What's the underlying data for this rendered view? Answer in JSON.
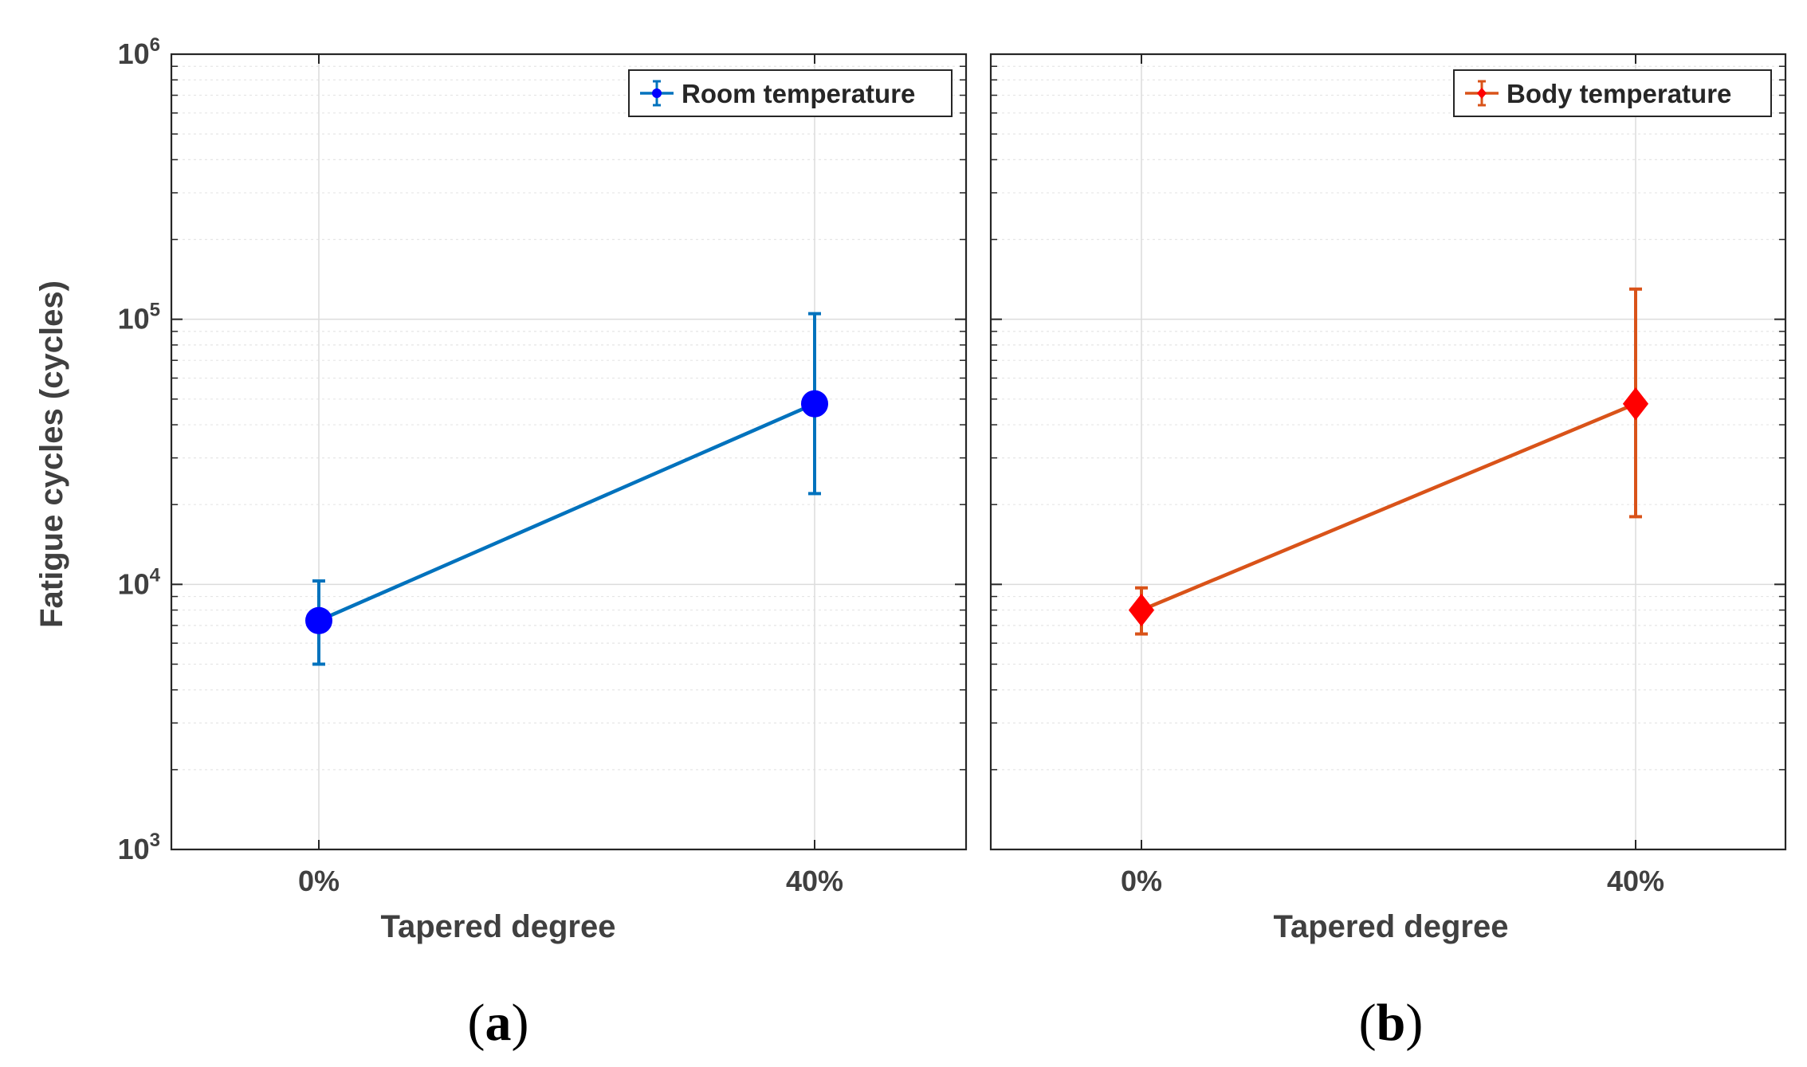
{
  "figure": {
    "ylabel": "Fatigue cycles (cycles)"
  },
  "chart_data": [
    {
      "type": "line",
      "panel": "a",
      "panel_label": {
        "open": "(",
        "letter": "a",
        "close": ")"
      },
      "categories": [
        "0%",
        "40%"
      ],
      "xlabel": "Tapered degree",
      "ylabel": "Fatigue cycles (cycles)",
      "yscale": "log",
      "ylim": [
        1000,
        1000000
      ],
      "yticks": [
        {
          "base": "10",
          "exp": "3"
        },
        {
          "base": "10",
          "exp": "4"
        },
        {
          "base": "10",
          "exp": "5"
        },
        {
          "base": "10",
          "exp": "6"
        }
      ],
      "grid": true,
      "legend_position": "top-right",
      "series": [
        {
          "name": "Room temperature",
          "line_color": "#0072BD",
          "marker_color": "#0000FF",
          "marker": "circle",
          "values": [
            7300,
            48000
          ],
          "error_low": [
            5000,
            22000
          ],
          "error_high": [
            10300,
            105000
          ]
        }
      ]
    },
    {
      "type": "line",
      "panel": "b",
      "panel_label": {
        "open": "(",
        "letter": "b",
        "close": ")"
      },
      "categories": [
        "0%",
        "40%"
      ],
      "xlabel": "Tapered degree",
      "yscale": "log",
      "ylim": [
        1000,
        1000000
      ],
      "grid": true,
      "legend_position": "top-right",
      "series": [
        {
          "name": "Body temperature",
          "line_color": "#D95319",
          "marker_color": "#FF0000",
          "marker": "diamond",
          "values": [
            8000,
            48000
          ],
          "error_low": [
            6500,
            18000
          ],
          "error_high": [
            9700,
            130000
          ]
        }
      ]
    }
  ]
}
